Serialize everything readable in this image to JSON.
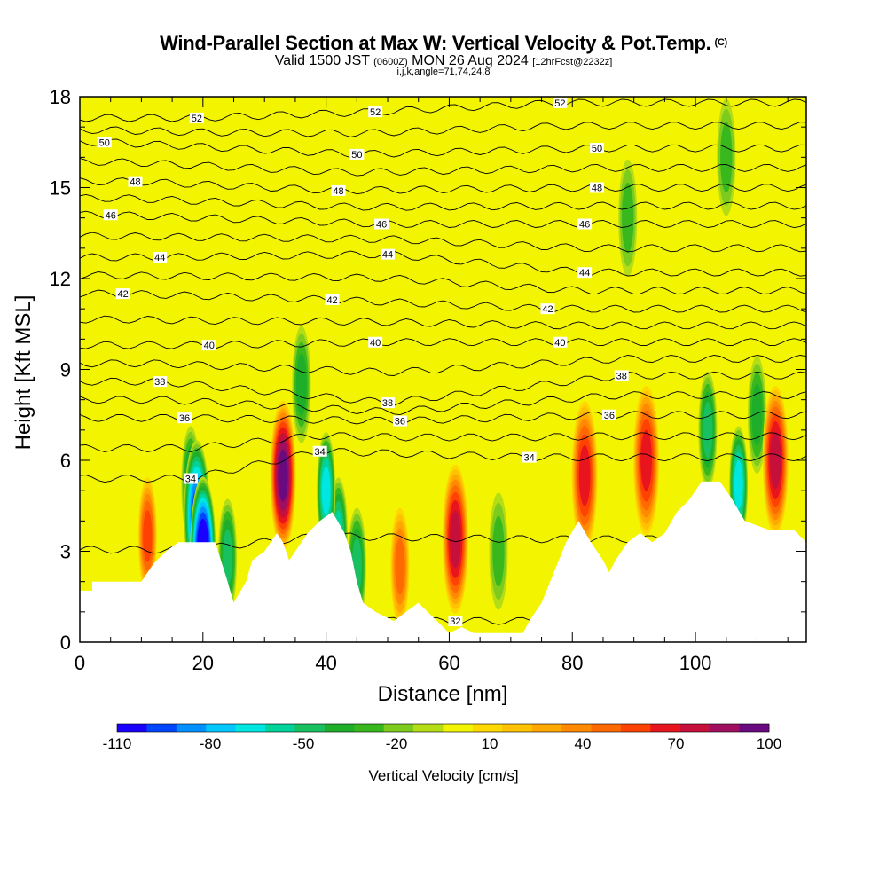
{
  "header": {
    "title": "Wind-Parallel Section at Max W: Vertical Velocity & Pot.Temp.",
    "copyright": "(C)",
    "valid_prefix": "Valid 1500 JST",
    "valid_utc": "(0600Z)",
    "valid_date": "MON 26 Aug 2024",
    "forecast": "[12hrFcst@2232z]",
    "indices": "i,j,k,angle=71,74,24,8"
  },
  "chart_data": {
    "type": "heatmap",
    "xlabel": "Distance [nm]",
    "ylabel": "Height [Kft MSL]",
    "xlim": [
      0,
      118
    ],
    "ylim": [
      0,
      18
    ],
    "x_ticks": [
      0,
      20,
      40,
      60,
      80,
      100
    ],
    "y_ticks": [
      0,
      3,
      6,
      9,
      12,
      15,
      18
    ],
    "colorbar": {
      "title": "Vertical Velocity [cm/s]",
      "labels": [
        "-110",
        "-80",
        "-50",
        "-20",
        "10",
        "40",
        "70",
        "100"
      ],
      "min": -110,
      "max": 100,
      "step": 10,
      "colors": [
        "#1a00ff",
        "#0045ff",
        "#0090ff",
        "#00c8ff",
        "#00e6e0",
        "#00d49a",
        "#18c060",
        "#1eae2a",
        "#39b81d",
        "#7ccb1d",
        "#b4dd16",
        "#f2f400",
        "#ffd800",
        "#ffc200",
        "#ffa800",
        "#ff8a00",
        "#ff6a00",
        "#ff4200",
        "#e8141e",
        "#c4103a",
        "#a00e60",
        "#6a0a80"
      ]
    },
    "background_value": 5,
    "terrain_height_profile": [
      [
        0,
        1.7
      ],
      [
        2,
        1.7
      ],
      [
        2,
        2.0
      ],
      [
        10,
        2.0
      ],
      [
        12,
        2.6
      ],
      [
        14,
        3.0
      ],
      [
        16,
        3.3
      ],
      [
        22,
        3.3
      ],
      [
        24,
        2.0
      ],
      [
        25,
        1.3
      ],
      [
        27,
        2.0
      ],
      [
        28,
        2.7
      ],
      [
        30,
        3.0
      ],
      [
        32,
        3.6
      ],
      [
        33,
        3.3
      ],
      [
        34,
        2.7
      ],
      [
        35,
        3.0
      ],
      [
        37,
        3.6
      ],
      [
        39,
        4.0
      ],
      [
        41,
        4.3
      ],
      [
        43,
        3.6
      ],
      [
        44,
        3.0
      ],
      [
        45,
        2.0
      ],
      [
        46,
        1.3
      ],
      [
        48,
        1.0
      ],
      [
        51,
        0.7
      ],
      [
        53,
        1.0
      ],
      [
        55,
        1.3
      ],
      [
        58,
        0.7
      ],
      [
        60,
        0.3
      ],
      [
        62,
        0.5
      ],
      [
        64,
        0.3
      ],
      [
        70,
        0.3
      ],
      [
        72,
        0.3
      ],
      [
        73,
        0.7
      ],
      [
        75,
        1.3
      ],
      [
        77,
        2.3
      ],
      [
        79,
        3.3
      ],
      [
        81,
        4.0
      ],
      [
        83,
        3.3
      ],
      [
        85,
        2.7
      ],
      [
        86,
        2.3
      ],
      [
        87,
        2.7
      ],
      [
        89,
        3.3
      ],
      [
        91,
        3.6
      ],
      [
        93,
        3.3
      ],
      [
        95,
        3.6
      ],
      [
        97,
        4.3
      ],
      [
        99,
        4.7
      ],
      [
        101,
        5.3
      ],
      [
        104,
        5.3
      ],
      [
        106,
        4.7
      ],
      [
        108,
        4.0
      ],
      [
        112,
        3.7
      ],
      [
        116,
        3.7
      ],
      [
        118,
        3.3
      ]
    ],
    "vertical_velocity_features": [
      {
        "x": 19,
        "y": 4.2,
        "value": -90
      },
      {
        "x": 20,
        "y": 3.0,
        "value": -110
      },
      {
        "x": 18,
        "y": 5.2,
        "value": -40
      },
      {
        "x": 24,
        "y": 2.8,
        "value": -40
      },
      {
        "x": 11,
        "y": 3.5,
        "value": 60
      },
      {
        "x": 33,
        "y": 5.5,
        "value": 100
      },
      {
        "x": 36,
        "y": 8.5,
        "value": -30
      },
      {
        "x": 40,
        "y": 5.0,
        "value": -60
      },
      {
        "x": 42,
        "y": 3.5,
        "value": -50
      },
      {
        "x": 45,
        "y": 2.5,
        "value": -40
      },
      {
        "x": 52,
        "y": 2.5,
        "value": 50
      },
      {
        "x": 61,
        "y": 3.4,
        "value": 80
      },
      {
        "x": 68,
        "y": 3.0,
        "value": -20
      },
      {
        "x": 82,
        "y": 5.5,
        "value": 70
      },
      {
        "x": 92,
        "y": 6.0,
        "value": 70
      },
      {
        "x": 89,
        "y": 14.0,
        "value": -20
      },
      {
        "x": 102,
        "y": 7.0,
        "value": -40
      },
      {
        "x": 107,
        "y": 5.2,
        "value": -60
      },
      {
        "x": 110,
        "y": 7.5,
        "value": -30
      },
      {
        "x": 113,
        "y": 6.0,
        "value": 80
      },
      {
        "x": 105,
        "y": 16.0,
        "value": -20
      }
    ],
    "potential_temperature_contours": {
      "label_levels": [
        "32",
        "34",
        "36",
        "38",
        "40",
        "42",
        "44",
        "46",
        "48",
        "50",
        "52"
      ],
      "labels": [
        {
          "text": "52",
          "x": 19,
          "y": 17.3
        },
        {
          "text": "52",
          "x": 48,
          "y": 17.5
        },
        {
          "text": "52",
          "x": 78,
          "y": 17.8
        },
        {
          "text": "50",
          "x": 4,
          "y": 16.5
        },
        {
          "text": "50",
          "x": 45,
          "y": 16.1
        },
        {
          "text": "50",
          "x": 84,
          "y": 16.3
        },
        {
          "text": "48",
          "x": 9,
          "y": 15.2
        },
        {
          "text": "48",
          "x": 42,
          "y": 14.9
        },
        {
          "text": "48",
          "x": 84,
          "y": 15.0
        },
        {
          "text": "46",
          "x": 5,
          "y": 14.1
        },
        {
          "text": "46",
          "x": 49,
          "y": 13.8
        },
        {
          "text": "46",
          "x": 82,
          "y": 13.8
        },
        {
          "text": "44",
          "x": 13,
          "y": 12.7
        },
        {
          "text": "44",
          "x": 50,
          "y": 12.8
        },
        {
          "text": "44",
          "x": 82,
          "y": 12.2
        },
        {
          "text": "42",
          "x": 7,
          "y": 11.5
        },
        {
          "text": "42",
          "x": 41,
          "y": 11.3
        },
        {
          "text": "42",
          "x": 76,
          "y": 11.0
        },
        {
          "text": "40",
          "x": 21,
          "y": 9.8
        },
        {
          "text": "40",
          "x": 48,
          "y": 9.9
        },
        {
          "text": "40",
          "x": 78,
          "y": 9.9
        },
        {
          "text": "38",
          "x": 13,
          "y": 8.6
        },
        {
          "text": "38",
          "x": 50,
          "y": 7.9
        },
        {
          "text": "38",
          "x": 88,
          "y": 8.8
        },
        {
          "text": "36",
          "x": 17,
          "y": 7.4
        },
        {
          "text": "36",
          "x": 52,
          "y": 7.3
        },
        {
          "text": "36",
          "x": 86,
          "y": 7.5
        },
        {
          "text": "34",
          "x": 18,
          "y": 5.4
        },
        {
          "text": "34",
          "x": 39,
          "y": 6.3
        },
        {
          "text": "34",
          "x": 73,
          "y": 6.1
        },
        {
          "text": "32",
          "x": 61,
          "y": 0.7
        }
      ]
    }
  }
}
